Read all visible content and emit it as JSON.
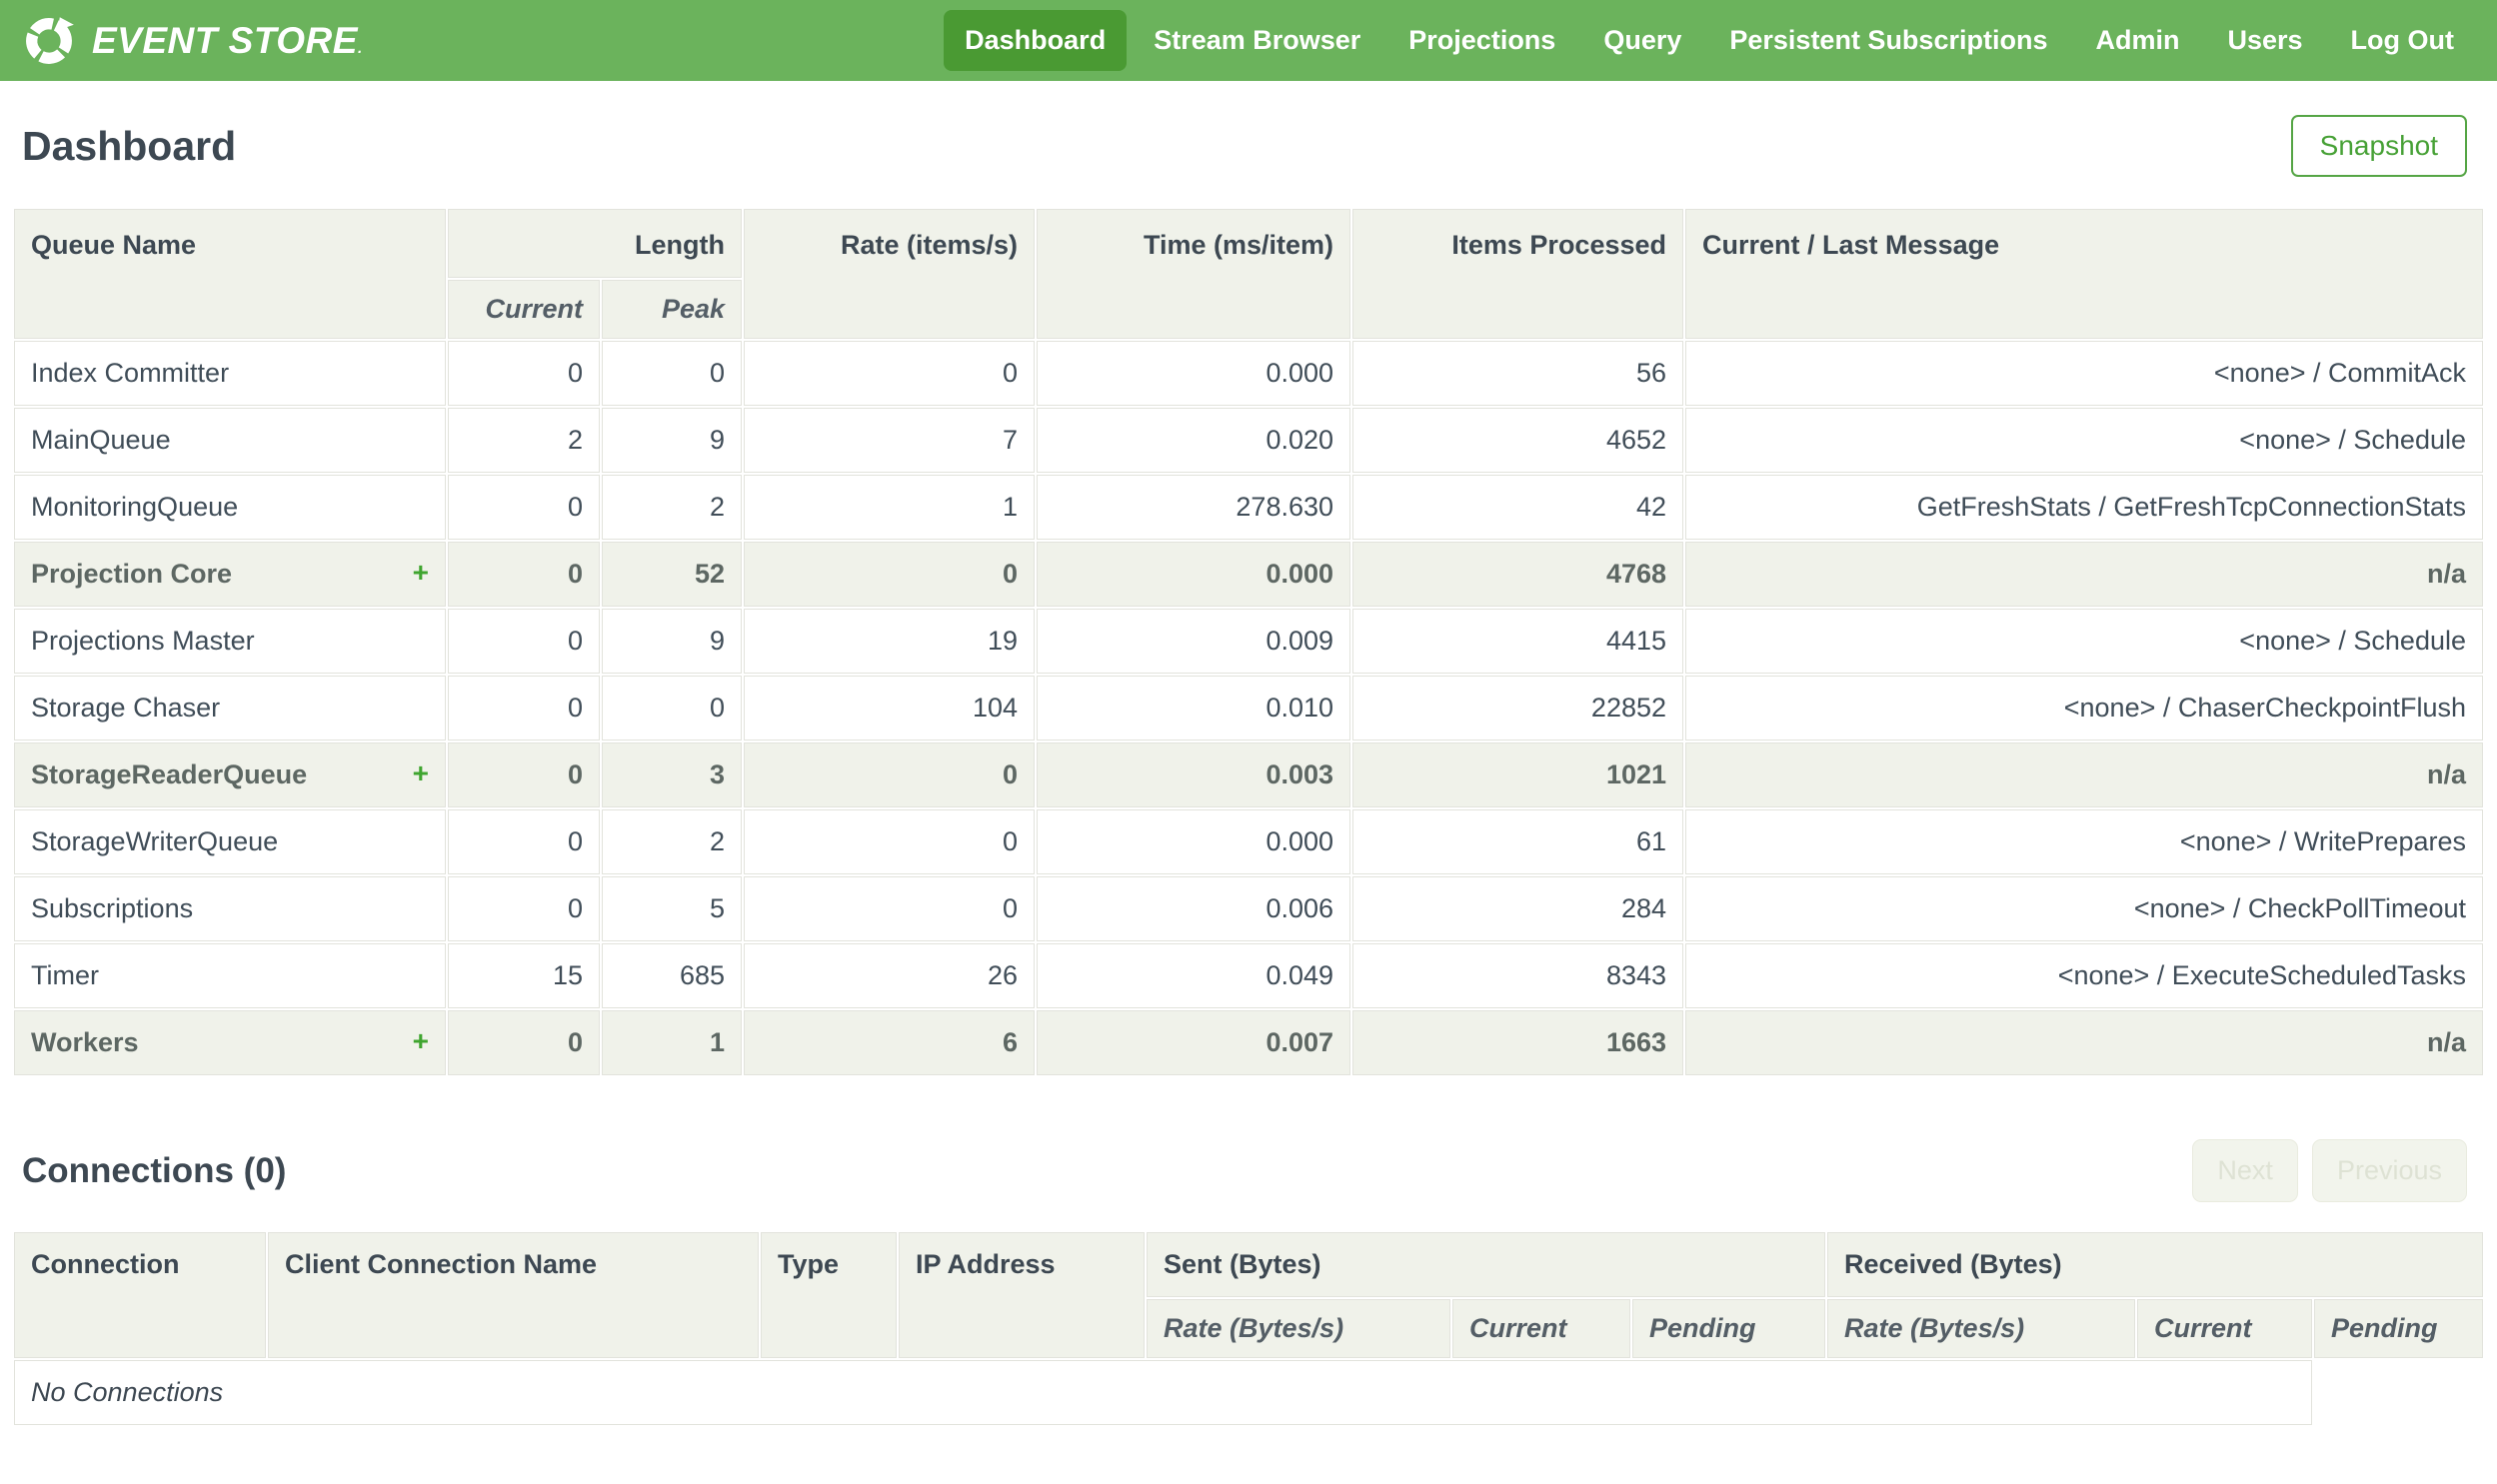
{
  "brand": {
    "name": "EVENT STORE",
    "mark": ".",
    "logo_icon": "circular-arrows-logo"
  },
  "nav": {
    "items": [
      {
        "id": "dashboard",
        "label": "Dashboard",
        "active": true
      },
      {
        "id": "stream-browser",
        "label": "Stream Browser",
        "active": false
      },
      {
        "id": "projections",
        "label": "Projections",
        "active": false
      },
      {
        "id": "query",
        "label": "Query",
        "active": false
      },
      {
        "id": "persistent-subscriptions",
        "label": "Persistent Subscriptions",
        "active": false
      },
      {
        "id": "admin",
        "label": "Admin",
        "active": false
      },
      {
        "id": "users",
        "label": "Users",
        "active": false
      },
      {
        "id": "log-out",
        "label": "Log Out",
        "active": false
      }
    ]
  },
  "page": {
    "title": "Dashboard",
    "snapshot_button": "Snapshot"
  },
  "queue_table": {
    "headers": {
      "queue_name": "Queue Name",
      "length": "Length",
      "current": "Current",
      "peak": "Peak",
      "rate": "Rate (items/s)",
      "time": "Time (ms/item)",
      "items_processed": "Items Processed",
      "message": "Current / Last Message"
    },
    "expand_icon": "+",
    "rows": [
      {
        "name": "Index Committer",
        "group": false,
        "current": "0",
        "peak": "0",
        "rate": "0",
        "time": "0.000",
        "items": "56",
        "message": "<none> / CommitAck"
      },
      {
        "name": "MainQueue",
        "group": false,
        "current": "2",
        "peak": "9",
        "rate": "7",
        "time": "0.020",
        "items": "4652",
        "message": "<none> / Schedule"
      },
      {
        "name": "MonitoringQueue",
        "group": false,
        "current": "0",
        "peak": "2",
        "rate": "1",
        "time": "278.630",
        "items": "42",
        "message": "GetFreshStats / GetFreshTcpConnectionStats"
      },
      {
        "name": "Projection Core",
        "group": true,
        "current": "0",
        "peak": "52",
        "rate": "0",
        "time": "0.000",
        "items": "4768",
        "message": "n/a"
      },
      {
        "name": "Projections Master",
        "group": false,
        "current": "0",
        "peak": "9",
        "rate": "19",
        "time": "0.009",
        "items": "4415",
        "message": "<none> / Schedule"
      },
      {
        "name": "Storage Chaser",
        "group": false,
        "current": "0",
        "peak": "0",
        "rate": "104",
        "time": "0.010",
        "items": "22852",
        "message": "<none> / ChaserCheckpointFlush"
      },
      {
        "name": "StorageReaderQueue",
        "group": true,
        "current": "0",
        "peak": "3",
        "rate": "0",
        "time": "0.003",
        "items": "1021",
        "message": "n/a"
      },
      {
        "name": "StorageWriterQueue",
        "group": false,
        "current": "0",
        "peak": "2",
        "rate": "0",
        "time": "0.000",
        "items": "61",
        "message": "<none> / WritePrepares"
      },
      {
        "name": "Subscriptions",
        "group": false,
        "current": "0",
        "peak": "5",
        "rate": "0",
        "time": "0.006",
        "items": "284",
        "message": "<none> / CheckPollTimeout"
      },
      {
        "name": "Timer",
        "group": false,
        "current": "15",
        "peak": "685",
        "rate": "26",
        "time": "0.049",
        "items": "8343",
        "message": "<none> / ExecuteScheduledTasks"
      },
      {
        "name": "Workers",
        "group": true,
        "current": "0",
        "peak": "1",
        "rate": "6",
        "time": "0.007",
        "items": "1663",
        "message": "n/a"
      }
    ]
  },
  "connections": {
    "title": "Connections (0)",
    "next_button": "Next",
    "previous_button": "Previous",
    "table": {
      "headers": {
        "connection": "Connection",
        "client_name": "Client Connection Name",
        "type": "Type",
        "ip": "IP Address",
        "sent": "Sent (Bytes)",
        "received": "Received (Bytes)"
      },
      "sub_headers": [
        "Rate (Bytes/s)",
        "Current",
        "Pending"
      ],
      "empty": "No Connections"
    }
  },
  "colors": {
    "nav_green": "#6bb35c",
    "active_green": "#4a9a33",
    "accent_green": "#47a136",
    "header_bg": "#f0f2ea",
    "border": "#e2e3dc",
    "text": "#404d58"
  }
}
